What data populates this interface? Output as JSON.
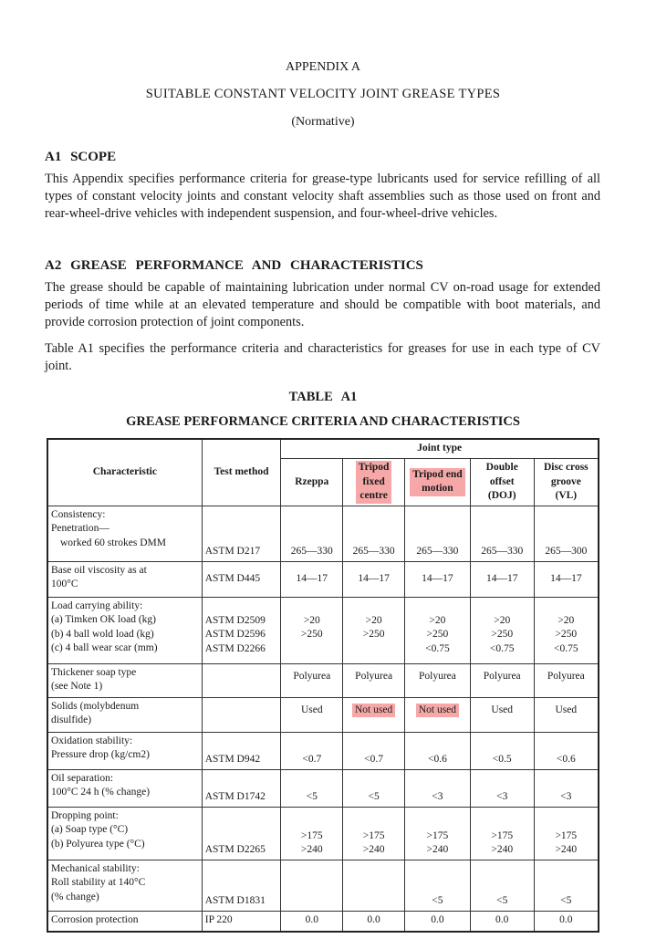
{
  "header": {
    "appendix": "APPENDIX A",
    "title": "SUITABLE CONSTANT VELOCITY JOINT GREASE TYPES",
    "subtitle": "(Normative)"
  },
  "sections": [
    {
      "heading": "A1 SCOPE",
      "paragraphs": [
        "This Appendix specifies performance criteria for grease-type lubricants used for service refilling of all types of constant velocity joints and constant velocity shaft assemblies such as those used on front and rear-wheel-drive vehicles with independent suspension, and four-wheel-drive vehicles."
      ]
    },
    {
      "heading": "A2 GREASE PERFORMANCE AND CHARACTERISTICS",
      "paragraphs": [
        "The grease should be capable of maintaining lubrication under normal CV on-road usage for extended periods of time while at an elevated temperature and should be compatible with boot materials, and provide corrosion protection of joint components.",
        "Table A1 specifies the performance criteria and characteristics for greases for use in each type of CV joint."
      ]
    }
  ],
  "table": {
    "label": "TABLE A1",
    "title": "GREASE PERFORMANCE CRITERIA AND CHARACTERISTICS",
    "headers": {
      "characteristic": "Characteristic",
      "test_method": "Test method",
      "joint_type": "Joint type",
      "columns": [
        [
          "Rzeppa"
        ],
        [
          "Tripod",
          "fixed",
          "centre"
        ],
        [
          "Tripod end",
          "motion"
        ],
        [
          "Double",
          "offset",
          "(DOJ)"
        ],
        [
          "Disc cross",
          "groove",
          "(VL)"
        ]
      ]
    },
    "rows": [
      {
        "characteristic": [
          "Consistency:",
          "Penetration—",
          "worked 60 strokes DMM"
        ],
        "test_method": [
          "ASTM D217"
        ],
        "values": [
          [
            "265—330"
          ],
          [
            "265—330"
          ],
          [
            "265—330"
          ],
          [
            "265—330"
          ],
          [
            "265—300"
          ]
        ]
      },
      {
        "characteristic": [
          "Base oil viscosity as at",
          "100°C"
        ],
        "test_method": [
          "ASTM D445"
        ],
        "values": [
          [
            "14—17"
          ],
          [
            "14—17"
          ],
          [
            "14—17"
          ],
          [
            "14—17"
          ],
          [
            "14—17"
          ]
        ]
      },
      {
        "characteristic": [
          "Load carrying ability:",
          "(a) Timken OK load (kg)",
          "(b) 4 ball wold load (kg)",
          "(c) 4 ball wear scar (mm)"
        ],
        "test_method": [
          "ASTM D2509",
          "ASTM D2596",
          "ASTM D2266"
        ],
        "values": [
          [
            ">20",
            ">250"
          ],
          [
            ">20",
            ">250"
          ],
          [
            ">20",
            ">250",
            "<0.75"
          ],
          [
            ">20",
            ">250",
            "<0.75"
          ],
          [
            ">20",
            ">250",
            "<0.75"
          ]
        ]
      },
      {
        "characteristic": [
          "Thickener soap type",
          "(see Note 1)"
        ],
        "test_method": null,
        "values": [
          [
            "Polyurea"
          ],
          [
            "Polyurea"
          ],
          [
            "Polyurea"
          ],
          [
            "Polyurea"
          ],
          [
            "Polyurea"
          ]
        ]
      },
      {
        "characteristic": [
          "Solids (molybdenum",
          "disulfide)"
        ],
        "test_method": null,
        "values": [
          [
            "Used"
          ],
          [
            "Not used"
          ],
          [
            "Not used"
          ],
          [
            "Used"
          ],
          [
            "Used"
          ]
        ]
      },
      {
        "characteristic": [
          "Oxidation stability:",
          "Pressure drop (kg/cm2)"
        ],
        "test_method": [
          "ASTM D942"
        ],
        "values": [
          [
            "<0.7"
          ],
          [
            "<0.7"
          ],
          [
            "<0.6"
          ],
          [
            "<0.5"
          ],
          [
            "<0.6"
          ]
        ]
      },
      {
        "characteristic": [
          "Oil separation:",
          "100°C 24 h (% change)"
        ],
        "test_method": [
          "ASTM D1742"
        ],
        "values": [
          [
            "<5"
          ],
          [
            "<5"
          ],
          [
            "<3"
          ],
          [
            "<3"
          ],
          [
            "<3"
          ]
        ]
      },
      {
        "characteristic": [
          "Dropping point:",
          "(a) Soap type (°C)",
          "(b) Polyurea type (°C)"
        ],
        "test_method": [
          "ASTM D2265"
        ],
        "values": [
          [
            ">175",
            ">240"
          ],
          [
            ">175",
            ">240"
          ],
          [
            ">175",
            ">240"
          ],
          [
            ">175",
            ">240"
          ],
          [
            ">175",
            ">240"
          ]
        ]
      },
      {
        "characteristic": [
          "Mechanical stability:",
          "Roll stability at 140°C",
          "(% change)"
        ],
        "test_method": [
          "ASTM D1831"
        ],
        "values": [
          null,
          null,
          [
            "<5"
          ],
          [
            "<5"
          ],
          [
            "<5"
          ]
        ]
      },
      {
        "characteristic": [
          "Corrosion protection"
        ],
        "test_method": [
          "IP 220"
        ],
        "values": [
          [
            "0.0"
          ],
          [
            "0.0"
          ],
          [
            "0.0"
          ],
          [
            "0.0"
          ],
          [
            "0.0"
          ]
        ]
      }
    ]
  }
}
